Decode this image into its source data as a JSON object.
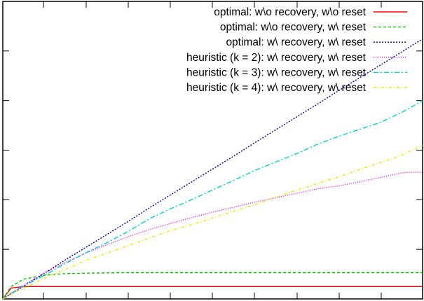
{
  "chart_data": {
    "type": "line",
    "title": "",
    "xlabel": "",
    "ylabel": "",
    "xlim": [
      0,
      100
    ],
    "ylim": [
      0,
      600
    ],
    "grid": false,
    "legend_position": "top-right",
    "x": [
      0,
      2,
      5,
      10,
      15,
      20,
      25,
      30,
      35,
      40,
      45,
      50,
      55,
      60,
      65,
      70,
      75,
      80,
      85,
      90,
      95,
      98,
      100
    ],
    "series": [
      {
        "name": "optimal: w\\o recovery, w\\o reset",
        "color": "#ff0000",
        "dash": "solid",
        "values": [
          0,
          22,
          25,
          25,
          25,
          25,
          25,
          25,
          25,
          25,
          25,
          25,
          25,
          25,
          25,
          25,
          25,
          25,
          25,
          25,
          25,
          25,
          25
        ]
      },
      {
        "name": "optimal: w\\o recovery, w\\ reset",
        "color": "#00c000",
        "dash": "4,3",
        "values": [
          0,
          25,
          40,
          48,
          51,
          52,
          52.5,
          53,
          53,
          53,
          53,
          53,
          53,
          53,
          53,
          53,
          53,
          53,
          53,
          53,
          53,
          53,
          53
        ]
      },
      {
        "name": "optimal: w\\ recovery, w\\ reset",
        "color": "#0000a0",
        "dash": "2,2",
        "values": [
          0,
          10.5,
          26,
          52,
          79,
          105,
          131,
          157,
          184,
          210,
          236,
          262,
          288,
          315,
          341,
          367,
          393,
          420,
          446,
          472,
          498,
          514,
          524
        ]
      },
      {
        "name": "heuristic (k = 2): w\\ recovery, w\\ reset",
        "color": "#ff00ff",
        "dash": "1,2",
        "values": [
          0,
          12,
          28,
          53,
          74,
          93,
          110,
          126,
          140,
          152,
          164,
          175,
          185,
          195,
          204,
          213,
          222,
          228,
          236,
          245,
          254,
          256,
          255
        ]
      },
      {
        "name": "heuristic (k = 3): w\\ recovery, w\\ reset",
        "color": "#00d0d0",
        "dash": "7,3,2,3",
        "values": [
          0,
          11,
          26,
          48,
          72,
          94,
          114,
          137,
          162,
          182,
          200,
          220,
          239,
          259,
          276,
          293,
          312,
          328,
          342,
          356,
          376,
          390,
          400
        ]
      },
      {
        "name": "heuristic (k = 4): w\\ recovery, w\\ reset",
        "color": "#e8e800",
        "dash": "4,3,1,3",
        "values": [
          0,
          9,
          22,
          42,
          60,
          78,
          93,
          108,
          123,
          138,
          150,
          163,
          177,
          190,
          205,
          219,
          233,
          246,
          261,
          275,
          290,
          302,
          309
        ]
      }
    ]
  }
}
